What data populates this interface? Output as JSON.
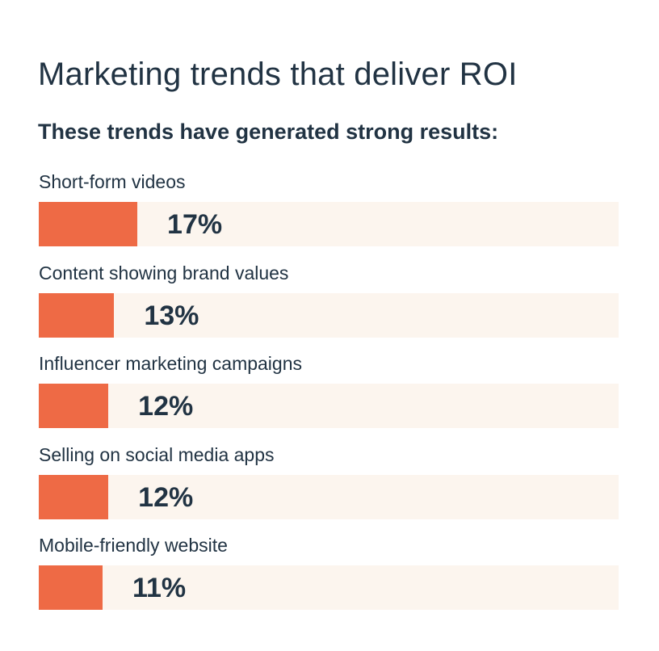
{
  "chart_data": {
    "type": "bar",
    "orientation": "horizontal",
    "title": "Marketing trends that deliver ROI",
    "subtitle": "These trends have generated strong results:",
    "categories": [
      "Short-form videos",
      "Content showing brand values",
      "Influencer marketing campaigns",
      "Selling on social media apps",
      "Mobile-friendly website"
    ],
    "values": [
      17,
      13,
      12,
      12,
      11
    ],
    "value_labels": [
      "17%",
      "13%",
      "12%",
      "12%",
      "11%"
    ],
    "xlim": [
      0,
      100
    ],
    "unit": "%",
    "grid": false,
    "colors": {
      "bar": "#ee6a45",
      "track": "#fcf5ee",
      "text": "#213343"
    }
  }
}
